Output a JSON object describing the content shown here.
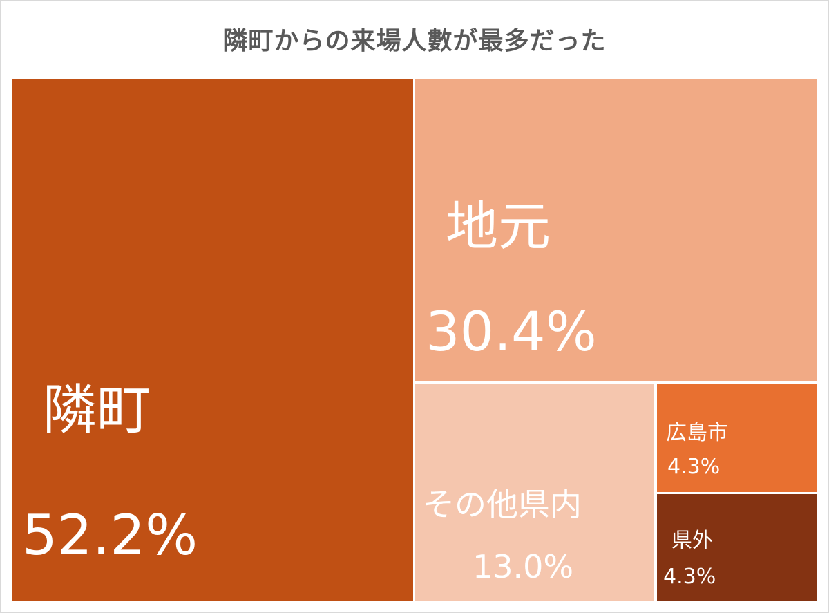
{
  "chart_data": {
    "type": "treemap",
    "title": "隣町からの来場人數が最多だった",
    "items": [
      {
        "label": "隣町",
        "value": 52.2,
        "value_label": "52.2%",
        "color": "#c05014"
      },
      {
        "label": "地元",
        "value": 30.4,
        "value_label": "30.4%",
        "color": "#f1aa85"
      },
      {
        "label": "その他県内",
        "value": 13.0,
        "value_label": "13.0%",
        "color": "#f5c6ae"
      },
      {
        "label": "広島市",
        "value": 4.3,
        "value_label": "4.3%",
        "color": "#e87030"
      },
      {
        "label": "県外",
        "value": 4.3,
        "value_label": "4.3%",
        "color": "#843312"
      }
    ]
  }
}
